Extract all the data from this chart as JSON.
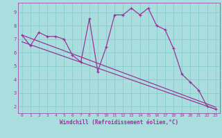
{
  "bg_color": "#aadddd",
  "line_color": "#993399",
  "grid_color": "#88cccc",
  "xlabel": "Windchill (Refroidissement éolien,°C)",
  "xlim": [
    -0.5,
    23.5
  ],
  "ylim": [
    1.5,
    9.7
  ],
  "yticks": [
    2,
    3,
    4,
    5,
    6,
    7,
    8,
    9
  ],
  "xticks": [
    0,
    1,
    2,
    3,
    4,
    5,
    6,
    7,
    8,
    9,
    10,
    11,
    12,
    13,
    14,
    15,
    16,
    17,
    18,
    19,
    20,
    21,
    22,
    23
  ],
  "series1_x": [
    0,
    1,
    2,
    3,
    4,
    5,
    6,
    7,
    8,
    9,
    10,
    11,
    12,
    13,
    14,
    15,
    16,
    17,
    18,
    19,
    20,
    21,
    22,
    23
  ],
  "series1_y": [
    7.3,
    6.5,
    7.5,
    7.2,
    7.2,
    7.0,
    5.8,
    5.3,
    8.5,
    4.6,
    6.4,
    8.8,
    8.8,
    9.3,
    8.8,
    9.3,
    8.0,
    7.7,
    6.3,
    4.4,
    3.8,
    3.2,
    2.0,
    1.8
  ],
  "series2_x": [
    0,
    23
  ],
  "series2_y": [
    7.3,
    1.95
  ],
  "series3_x": [
    0,
    23
  ],
  "series3_y": [
    6.8,
    1.8
  ]
}
